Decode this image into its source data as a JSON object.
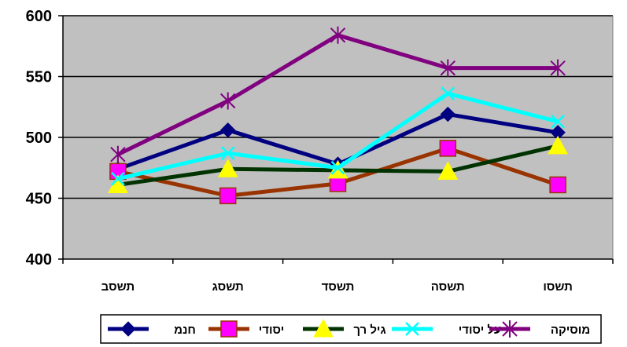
{
  "chart_data": {
    "type": "line",
    "categories": [
      "תשסב",
      "תשסג",
      "תשסד",
      "תשסה",
      "תשסו"
    ],
    "ylim": [
      400,
      600
    ],
    "yticks": [
      400,
      450,
      500,
      550,
      600
    ],
    "grid": true,
    "legend_position": "bottom",
    "series": [
      {
        "name": "חנמ",
        "values": [
          474,
          506,
          478,
          519,
          504
        ],
        "color": "#000080",
        "marker": "diamond"
      },
      {
        "name": "יסודי",
        "values": [
          472,
          452,
          462,
          491,
          461
        ],
        "color": "#993300",
        "marker": "square"
      },
      {
        "name": "גיל רך",
        "values": [
          461,
          474,
          473,
          472,
          493
        ],
        "color": "#003300",
        "marker": "triangle"
      },
      {
        "name": "על יסודי",
        "values": [
          466,
          487,
          475,
          536,
          513
        ],
        "color": "#00ffff",
        "marker": "x"
      },
      {
        "name": "מוסיקה",
        "values": [
          486,
          530,
          584,
          557,
          557
        ],
        "color": "#800080",
        "marker": "star"
      }
    ],
    "colors": {
      "plot_background": "#c0c0c0",
      "square_marker_fill": "#ff00ff",
      "triangle_marker_fill": "#ffff00"
    }
  }
}
